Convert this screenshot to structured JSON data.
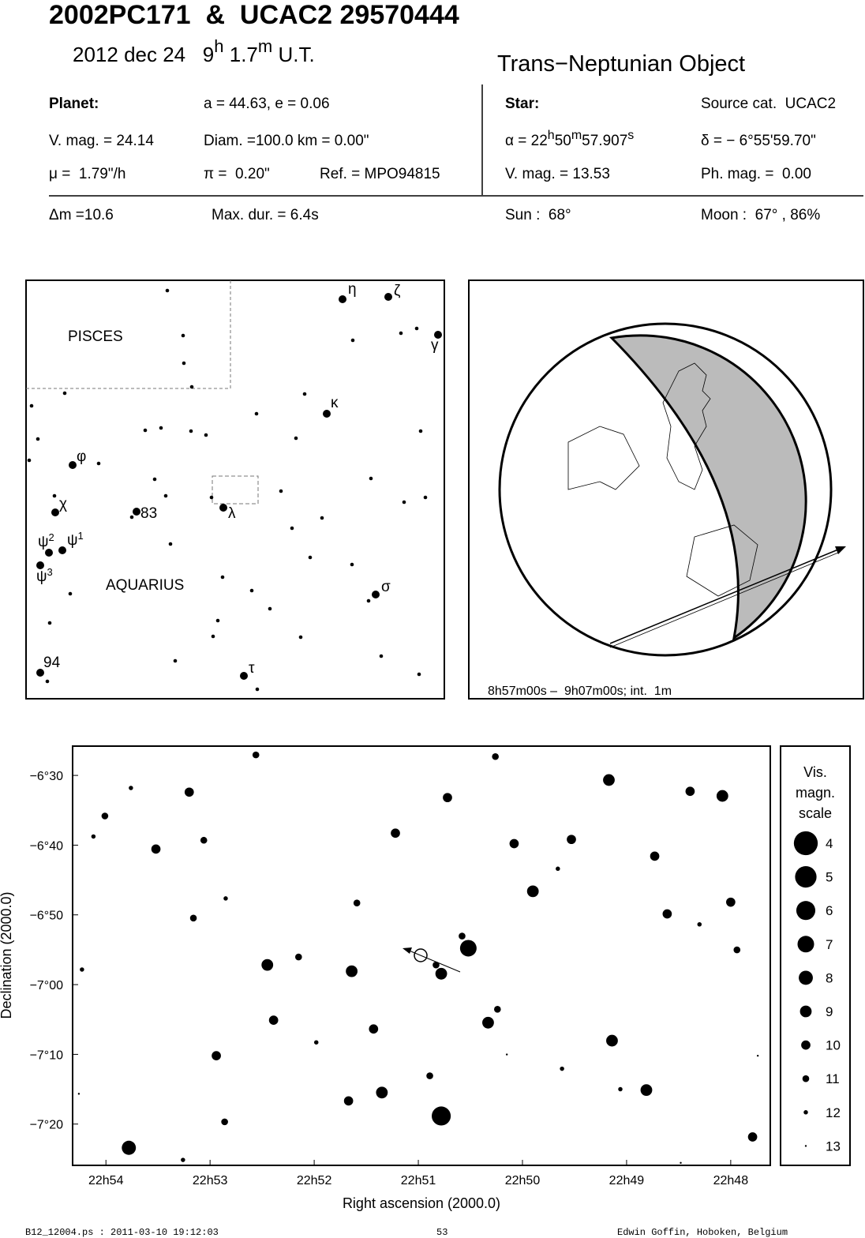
{
  "header": {
    "title": "2002PC171  &  UCAC2 29570444",
    "date_parts": [
      "2012 dec 24   9",
      "h",
      " 1.7",
      "m",
      " U.T."
    ],
    "class": "Trans−Neptunian Object"
  },
  "planet": {
    "label": "Planet:",
    "orbit": "a = 44.63, e = 0.06",
    "vmag": "V. mag. = 24.14",
    "diam": "Diam. =100.0 km = 0.00\"",
    "mu": "μ =  1.79\"/h",
    "pi": "π =  0.20\"",
    "ref": "Ref. = MPO94815"
  },
  "star": {
    "label": "Star:",
    "source": "Source cat.  UCAC2",
    "alpha_parts": [
      "α = 22",
      "h",
      "50",
      "m",
      "57.907",
      "s"
    ],
    "delta": "δ = − 6°55'59.70\"",
    "vmag": "V. mag. = 13.53",
    "phmag": "Ph. mag. =  0.00"
  },
  "event": {
    "dm": "Δm =10.6",
    "maxdur": "Max. dur. = 6.4s",
    "sun": "Sun :  68°",
    "moon": "Moon :  67° , 86%"
  },
  "finder": {
    "constellations": [
      "PISCES",
      "AQUARIUS"
    ],
    "labels": [
      "η",
      "ζ",
      "γ",
      "κ",
      "φ",
      "χ",
      "83",
      "λ",
      [
        "ψ",
        "2"
      ],
      [
        "ψ",
        "1"
      ],
      [
        "ψ",
        "3"
      ],
      "σ",
      "94",
      "τ"
    ]
  },
  "globe": {
    "caption": "8h57m00s –  9h07m00s; int.  1m"
  },
  "chart_data": {
    "type": "scatter",
    "xlabel": "Right ascension (2000.0)",
    "ylabel": "Declination (2000.0)",
    "xlim": [
      1374.32,
      1367.62
    ],
    "ylim": [
      -7.432,
      -6.43
    ],
    "xticks": [
      {
        "value": 1374,
        "label": "22h54"
      },
      {
        "value": 1373,
        "label": "22h53"
      },
      {
        "value": 1372,
        "label": "22h52"
      },
      {
        "value": 1371,
        "label": "22h51"
      },
      {
        "value": 1370,
        "label": "22h50"
      },
      {
        "value": 1369,
        "label": "22h49"
      },
      {
        "value": 1368,
        "label": "22h48"
      }
    ],
    "yticks": [
      {
        "value": -6.5,
        "label": "−6°30"
      },
      {
        "value": -6.6667,
        "label": "−6°40"
      },
      {
        "value": -6.8333,
        "label": "−6°50"
      },
      {
        "value": -7,
        "label": "−7°00"
      },
      {
        "value": -7.1667,
        "label": "−7°10"
      },
      {
        "value": -7.3333,
        "label": "−7°20"
      }
    ],
    "x": [
      1373.78,
      1370.78,
      1370.52,
      1372.45,
      1369.17,
      1368.08,
      1368.39,
      1370.72,
      1370.78,
      1371.35,
      1371.67,
      1369.14,
      1368.81,
      1369.9,
      1370.33,
      1371.64,
      1373.52,
      1373.2,
      1371.22,
      1370.08,
      1369.53,
      1368.73,
      1368.61,
      1368.0,
      1367.79,
      1371.43,
      1372.94,
      1372.39,
      1373.16,
      1370.58,
      1370.83,
      1371.59,
      1372.15,
      1370.26,
      1372.56,
      1373.06,
      1374.01,
      1367.94,
      1370.24,
      1370.89,
      1372.86,
      1372.85,
      1369.66,
      1368.3,
      1371.98,
      1373.76,
      1374.23,
      1373.26,
      1369.06,
      1369.62,
      1374.26,
      1370.15,
      1368.48,
      1367.74,
      1374.12
    ],
    "values": [
      -7.39,
      -7.314,
      -6.913,
      -6.953,
      -6.511,
      -6.549,
      -6.538,
      -6.553,
      -6.974,
      -7.258,
      -7.278,
      -7.134,
      -7.252,
      -6.777,
      -7.091,
      -6.968,
      -6.676,
      -6.54,
      -6.638,
      -6.663,
      -6.653,
      -6.693,
      -6.831,
      -6.803,
      -7.364,
      -7.106,
      -7.17,
      -7.085,
      -6.841,
      -6.884,
      -6.953,
      -6.805,
      -6.934,
      -6.455,
      -6.451,
      -6.655,
      -6.597,
      -6.917,
      -7.059,
      -7.218,
      -7.328,
      -6.794,
      -6.723,
      -6.856,
      -7.138,
      -6.53,
      -6.964,
      -7.419,
      -7.25,
      -7.201,
      -7.261,
      -7.167,
      -7.426,
      -7.17,
      -6.646
    ],
    "sizes": [
      8,
      6,
      7,
      9,
      9,
      9,
      10,
      10,
      9,
      9,
      10,
      9,
      9,
      9,
      9,
      9,
      10,
      10,
      10,
      10,
      10,
      10,
      10,
      10,
      10,
      10,
      10,
      10,
      11,
      11,
      11,
      11,
      11,
      11,
      11,
      11,
      11,
      11,
      11,
      11,
      11,
      12,
      12,
      12,
      12,
      12,
      12,
      12,
      12,
      12,
      13,
      13,
      13,
      13,
      12
    ],
    "legend_title": [
      "Vis.",
      "magn.",
      "scale"
    ],
    "scale": [
      4,
      5,
      6,
      7,
      8,
      9,
      10,
      11,
      12,
      13
    ]
  },
  "footer": {
    "file": "B12_12004.ps : 2011-03-10 19:12:03",
    "page": "53",
    "author": "Edwin Goffin, Hoboken, Belgium"
  }
}
